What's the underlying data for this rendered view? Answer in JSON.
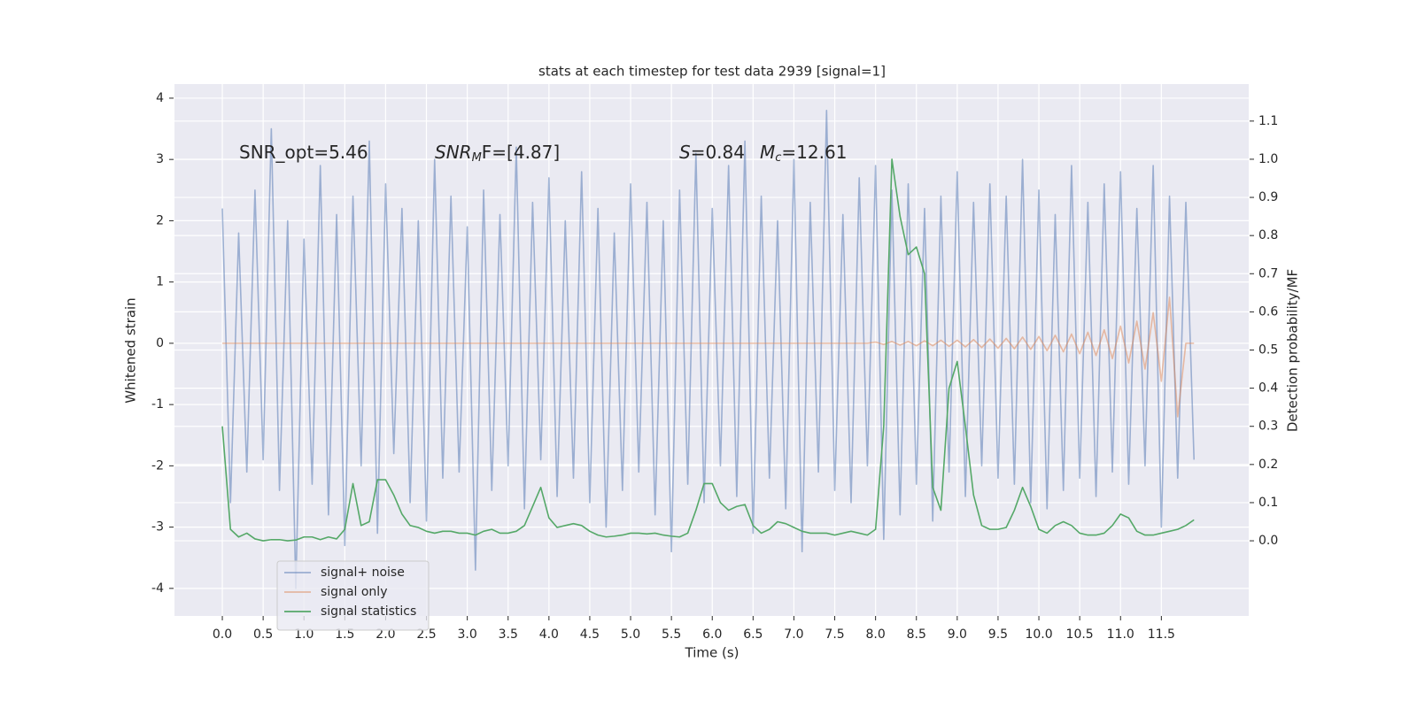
{
  "chart_data": {
    "type": "line",
    "title": "stats at each timestep for test data 2939 [signal=1]",
    "xlabel": "Time (s)",
    "ylabel": "Whitened strain",
    "y2label": "Detection probability/MF",
    "annotations": [
      [
        {
          "text": "SNR_opt=5.46"
        }
      ],
      [
        {
          "text": "SNR",
          "italic": true
        },
        {
          "text": "M",
          "italic": true,
          "sub": true
        },
        {
          "text": "F=[4.87]"
        }
      ],
      [
        {
          "text": "S",
          "italic": true
        },
        {
          "text": "=0.84"
        }
      ],
      [
        {
          "text": "M",
          "italic": true
        },
        {
          "text": "c",
          "italic": true,
          "sub": true
        },
        {
          "text": "=12.61"
        }
      ]
    ],
    "x": [
      0.0,
      0.1,
      0.2,
      0.3,
      0.4,
      0.5,
      0.6,
      0.7,
      0.8,
      0.9,
      1.0,
      1.1,
      1.2,
      1.3,
      1.4,
      1.5,
      1.6,
      1.7,
      1.8,
      1.9,
      2.0,
      2.1,
      2.2,
      2.3,
      2.4,
      2.5,
      2.6,
      2.7,
      2.8,
      2.9,
      3.0,
      3.1,
      3.2,
      3.3,
      3.4,
      3.5,
      3.6,
      3.7,
      3.8,
      3.9,
      4.0,
      4.1,
      4.2,
      4.3,
      4.4,
      4.5,
      4.6,
      4.7,
      4.8,
      4.9,
      5.0,
      5.1,
      5.2,
      5.3,
      5.4,
      5.5,
      5.6,
      5.7,
      5.8,
      5.9,
      6.0,
      6.1,
      6.2,
      6.3,
      6.4,
      6.5,
      6.6,
      6.7,
      6.8,
      6.9,
      7.0,
      7.1,
      7.2,
      7.3,
      7.4,
      7.5,
      7.6,
      7.7,
      7.8,
      7.9,
      8.0,
      8.1,
      8.2,
      8.3,
      8.4,
      8.5,
      8.6,
      8.7,
      8.8,
      8.9,
      9.0,
      9.1,
      9.2,
      9.3,
      9.4,
      9.5,
      9.6,
      9.7,
      9.8,
      9.9,
      10.0,
      10.1,
      10.2,
      10.3,
      10.4,
      10.5,
      10.6,
      10.7,
      10.8,
      10.9,
      11.0,
      11.1,
      11.2,
      11.3,
      11.4,
      11.5,
      11.6,
      11.7,
      11.8,
      11.9
    ],
    "series": [
      {
        "name": "signal+ noise",
        "color": "#4c72b0",
        "opacity": 0.5,
        "values": [
          2.2,
          -2.6,
          1.8,
          -2.1,
          2.5,
          -1.9,
          3.5,
          -2.4,
          2.0,
          -4.0,
          1.7,
          -2.3,
          2.9,
          -2.8,
          2.1,
          -3.3,
          2.4,
          -2.0,
          3.3,
          -3.1,
          2.6,
          -1.8,
          2.2,
          -2.6,
          2.0,
          -2.9,
          3.0,
          -2.2,
          2.4,
          -2.1,
          1.9,
          -3.7,
          2.5,
          -2.4,
          2.1,
          -2.0,
          3.2,
          -2.7,
          2.3,
          -1.9,
          2.7,
          -2.5,
          2.0,
          -2.2,
          2.8,
          -2.6,
          2.2,
          -3.0,
          1.8,
          -2.4,
          2.6,
          -2.1,
          2.3,
          -2.8,
          2.0,
          -3.4,
          2.5,
          -2.3,
          3.1,
          -2.6,
          2.2,
          -2.0,
          2.9,
          -2.5,
          3.3,
          -3.1,
          2.4,
          -2.2,
          2.0,
          -2.7,
          3.0,
          -3.4,
          2.3,
          -2.1,
          3.8,
          -2.4,
          2.1,
          -2.6,
          2.7,
          -2.0,
          2.9,
          -3.2,
          2.5,
          -2.8,
          2.6,
          -2.3,
          2.2,
          -2.9,
          2.4,
          -2.1,
          2.8,
          -2.5,
          2.3,
          -2.0,
          2.6,
          -2.2,
          2.4,
          -2.3,
          3.0,
          -2.6,
          2.5,
          -2.7,
          2.1,
          -2.4,
          2.9,
          -2.2,
          2.3,
          -2.5,
          2.6,
          -2.1,
          2.8,
          -2.3,
          2.2,
          -2.0,
          2.9,
          -3.0,
          2.4,
          -2.2,
          2.3,
          -1.9
        ]
      },
      {
        "name": "signal only",
        "color": "#dd8452",
        "opacity": 0.5,
        "values": [
          0,
          0,
          0,
          0,
          0,
          0,
          0,
          0,
          0,
          0,
          0,
          0,
          0,
          0,
          0,
          0,
          0,
          0,
          0,
          0,
          0,
          0,
          0,
          0,
          0,
          0,
          0,
          0,
          0,
          0,
          0,
          0,
          0,
          0,
          0,
          0,
          0,
          0,
          0,
          0,
          0,
          0,
          0,
          0,
          0,
          0,
          0,
          0,
          0,
          0,
          0,
          0,
          0,
          0,
          0,
          0,
          0,
          0,
          0,
          0,
          0,
          0,
          0,
          0,
          0,
          0,
          0,
          0,
          0,
          0,
          0,
          0,
          0,
          0,
          0,
          0,
          0,
          0,
          0,
          0,
          0.02,
          -0.02,
          0.03,
          -0.03,
          0.03,
          -0.04,
          0.04,
          -0.04,
          0.05,
          -0.05,
          0.05,
          -0.06,
          0.06,
          -0.07,
          0.07,
          -0.08,
          0.08,
          -0.09,
          0.1,
          -0.1,
          0.11,
          -0.12,
          0.13,
          -0.14,
          0.15,
          -0.17,
          0.18,
          -0.2,
          0.22,
          -0.25,
          0.28,
          -0.32,
          0.36,
          -0.42,
          0.5,
          -0.62,
          0.75,
          -1.2,
          0,
          0
        ]
      },
      {
        "name": "signal statistics",
        "color": "#55a868",
        "opacity": 1,
        "axis": "y2",
        "values": [
          0.3,
          0.03,
          0.01,
          0.02,
          0.005,
          0.0,
          0.003,
          0.003,
          0.0,
          0.002,
          0.01,
          0.01,
          0.003,
          0.01,
          0.005,
          0.03,
          0.15,
          0.04,
          0.05,
          0.16,
          0.16,
          0.12,
          0.07,
          0.04,
          0.035,
          0.025,
          0.02,
          0.025,
          0.025,
          0.02,
          0.02,
          0.015,
          0.025,
          0.03,
          0.02,
          0.02,
          0.025,
          0.04,
          0.09,
          0.14,
          0.06,
          0.035,
          0.04,
          0.045,
          0.04,
          0.025,
          0.015,
          0.01,
          0.012,
          0.015,
          0.02,
          0.02,
          0.018,
          0.02,
          0.015,
          0.012,
          0.01,
          0.02,
          0.08,
          0.15,
          0.15,
          0.1,
          0.08,
          0.09,
          0.095,
          0.04,
          0.02,
          0.03,
          0.05,
          0.045,
          0.035,
          0.025,
          0.02,
          0.02,
          0.02,
          0.015,
          0.02,
          0.025,
          0.02,
          0.015,
          0.03,
          0.3,
          1.0,
          0.85,
          0.75,
          0.77,
          0.7,
          0.14,
          0.08,
          0.4,
          0.47,
          0.3,
          0.12,
          0.04,
          0.03,
          0.03,
          0.035,
          0.08,
          0.14,
          0.09,
          0.03,
          0.02,
          0.04,
          0.05,
          0.04,
          0.02,
          0.015,
          0.015,
          0.02,
          0.04,
          0.07,
          0.06,
          0.025,
          0.015,
          0.015,
          0.02,
          0.025,
          0.03,
          0.04,
          0.055
        ]
      }
    ],
    "xlim": [
      -0.586,
      12.57
    ],
    "xticks": [
      {
        "value": 0,
        "label": "0.0"
      },
      {
        "value": 0.5,
        "label": "0.5"
      },
      {
        "value": 1,
        "label": "1.0"
      },
      {
        "value": 1.5,
        "label": "1.5"
      },
      {
        "value": 2,
        "label": "2.0"
      },
      {
        "value": 2.5,
        "label": "2.5"
      },
      {
        "value": 3,
        "label": "3.0"
      },
      {
        "value": 3.5,
        "label": "3.5"
      },
      {
        "value": 4,
        "label": "4.0"
      },
      {
        "value": 4.5,
        "label": "4.5"
      },
      {
        "value": 5,
        "label": "5.0"
      },
      {
        "value": 5.5,
        "label": "5.5"
      },
      {
        "value": 6,
        "label": "6.0"
      },
      {
        "value": 6.5,
        "label": "6.5"
      },
      {
        "value": 7,
        "label": "7.0"
      },
      {
        "value": 7.5,
        "label": "7.5"
      },
      {
        "value": 8,
        "label": "8.0"
      },
      {
        "value": 8.5,
        "label": "8.5"
      },
      {
        "value": 9,
        "label": "9.0"
      },
      {
        "value": 9.5,
        "label": "9.5"
      },
      {
        "value": 10,
        "label": "10.0"
      },
      {
        "value": 10.5,
        "label": "10.5"
      },
      {
        "value": 11,
        "label": "11.0"
      },
      {
        "value": 11.5,
        "label": "11.5"
      }
    ],
    "ylim": [
      -4.45,
      4.23
    ],
    "yticks": [
      -4,
      -3,
      -2,
      -1,
      0,
      1,
      2,
      3,
      4
    ],
    "y2lim": [
      -0.197,
      1.197
    ],
    "y2ticks": [
      {
        "value": 0,
        "label": "0.0"
      },
      {
        "value": 0.1,
        "label": "0.1"
      },
      {
        "value": 0.2,
        "label": "0.2"
      },
      {
        "value": 0.3,
        "label": "0.3"
      },
      {
        "value": 0.4,
        "label": "0.4"
      },
      {
        "value": 0.5,
        "label": "0.5"
      },
      {
        "value": 0.6,
        "label": "0.6"
      },
      {
        "value": 0.7,
        "label": "0.7"
      },
      {
        "value": 0.8,
        "label": "0.8"
      },
      {
        "value": 0.9,
        "label": "0.9"
      },
      {
        "value": 1.0,
        "label": "1.0"
      },
      {
        "value": 1.1,
        "label": "1.1"
      }
    ],
    "grid": true,
    "legend": "lower left"
  }
}
